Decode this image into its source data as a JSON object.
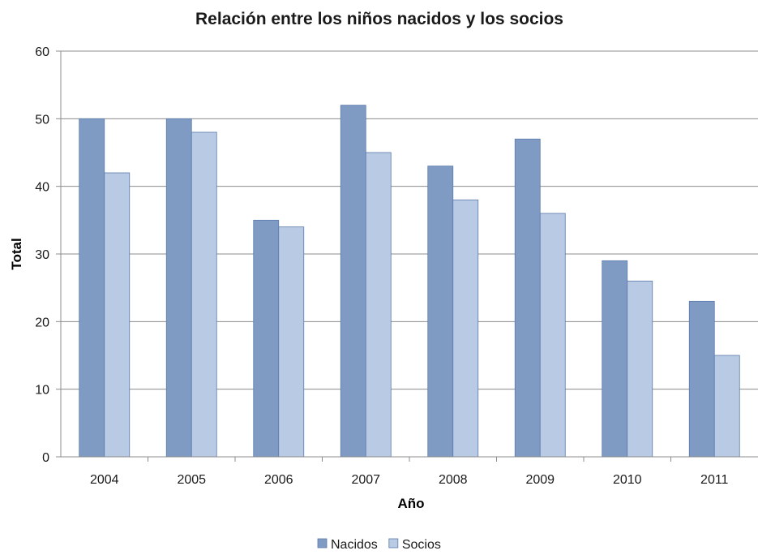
{
  "chart_data": {
    "type": "bar",
    "title": "Relación entre los niños nacidos y los socios",
    "xlabel": "Año",
    "ylabel": "Total",
    "categories": [
      "2004",
      "2005",
      "2006",
      "2007",
      "2008",
      "2009",
      "2010",
      "2011"
    ],
    "series": [
      {
        "name": "Nacidos",
        "color": "#7f9bc4",
        "values": [
          50,
          50,
          35,
          52,
          43,
          47,
          29,
          23
        ]
      },
      {
        "name": "Socios",
        "color": "#b9cae4",
        "values": [
          42,
          48,
          34,
          45,
          38,
          36,
          26,
          15
        ]
      }
    ],
    "ylim": [
      0,
      60
    ],
    "yticks": [
      0,
      10,
      20,
      30,
      40,
      50,
      60
    ],
    "grid": true,
    "legend_position": "bottom"
  }
}
